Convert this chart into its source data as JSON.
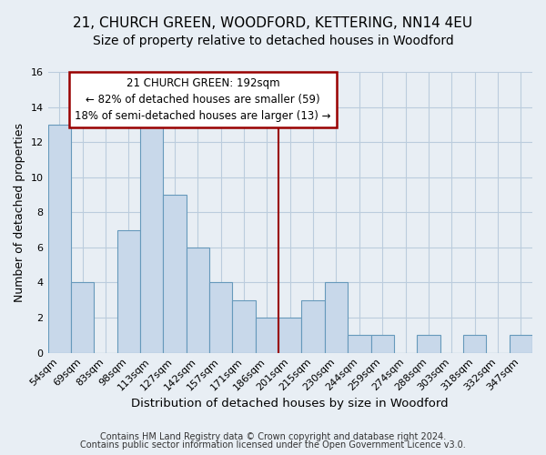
{
  "title1": "21, CHURCH GREEN, WOODFORD, KETTERING, NN14 4EU",
  "title2": "Size of property relative to detached houses in Woodford",
  "xlabel": "Distribution of detached houses by size in Woodford",
  "ylabel": "Number of detached properties",
  "footer1": "Contains HM Land Registry data © Crown copyright and database right 2024.",
  "footer2": "Contains public sector information licensed under the Open Government Licence v3.0.",
  "bin_labels": [
    "54sqm",
    "69sqm",
    "83sqm",
    "98sqm",
    "113sqm",
    "127sqm",
    "142sqm",
    "157sqm",
    "171sqm",
    "186sqm",
    "201sqm",
    "215sqm",
    "230sqm",
    "244sqm",
    "259sqm",
    "274sqm",
    "288sqm",
    "303sqm",
    "318sqm",
    "332sqm",
    "347sqm"
  ],
  "values": [
    13,
    4,
    0,
    7,
    13,
    9,
    6,
    4,
    3,
    2,
    2,
    3,
    4,
    1,
    1,
    0,
    1,
    0,
    1,
    0,
    1
  ],
  "bar_color": "#c8d8ea",
  "bar_edge_color": "#6699bb",
  "vline_x_index": 9.5,
  "vline_color": "#990000",
  "annotation_line1": "21 CHURCH GREEN: 192sqm",
  "annotation_line2": "← 82% of detached houses are smaller (59)",
  "annotation_line3": "18% of semi-detached houses are larger (13) →",
  "annotation_box_facecolor": "#ffffff",
  "annotation_box_edgecolor": "#990000",
  "ylim": [
    0,
    16
  ],
  "yticks": [
    0,
    2,
    4,
    6,
    8,
    10,
    12,
    14,
    16
  ],
  "grid_color": "#bbccdd",
  "bg_color": "#e8eef4",
  "title1_fontsize": 11,
  "title2_fontsize": 10,
  "xlabel_fontsize": 9.5,
  "ylabel_fontsize": 9,
  "tick_fontsize": 8,
  "footer_fontsize": 7,
  "annot_fontsize": 8.5
}
